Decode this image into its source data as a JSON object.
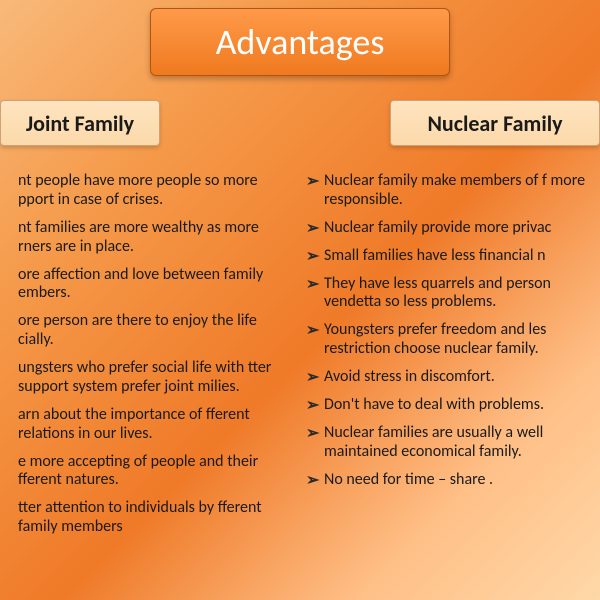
{
  "title": "Advantages",
  "title_fontsize": 36,
  "header_fontsize": 22,
  "body_fontsize": 16,
  "columns": {
    "left": {
      "header": "Joint Family",
      "items": [
        "nt people have more people so more pport in case of crises.",
        "nt families are more wealthy as more rners are in place.",
        "ore affection and love between family embers.",
        "ore person are there to enjoy the life cially.",
        "ungsters who prefer social life with tter support system prefer joint milies.",
        "arn about the importance of fferent relations in our lives.",
        "e more accepting of people and their fferent natures.",
        "tter attention to individuals by fferent family members"
      ]
    },
    "right": {
      "header": "Nuclear Family",
      "items": [
        "Nuclear family make members of f more responsible.",
        "Nuclear family provide more privac",
        "Small families have less financial n",
        "They have less quarrels and person vendetta so less problems.",
        "Youngsters prefer freedom and les restriction choose nuclear family.",
        "Avoid stress in discomfort.",
        "Don't have to deal with problems.",
        "Nuclear families are usually a well maintained economical family.",
        "No need for time – share ."
      ]
    }
  },
  "colors": {
    "title_bg_top": "#ff9a4a",
    "title_bg_bottom": "#ef7a1f",
    "title_text": "#ffffff",
    "header_bg_top": "#ffe4c0",
    "header_bg_bottom": "#fbd9aa",
    "header_text": "#1a1a1a",
    "body_text": "#1a1a1a",
    "bg_gradient": [
      "#f8b97a",
      "#f59a4a",
      "#ef7a28",
      "#ffc088",
      "#ffd8a8"
    ]
  },
  "bullet_glyph": "➢"
}
